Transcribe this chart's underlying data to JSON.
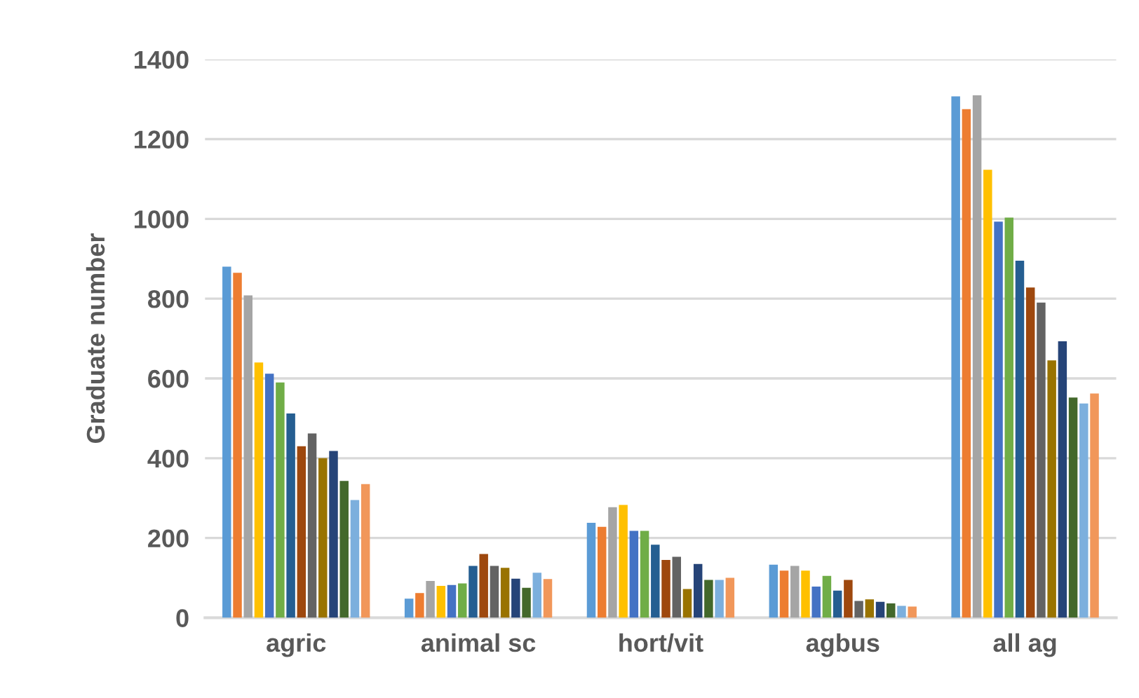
{
  "chart_data": {
    "type": "bar",
    "ylabel": "Graduate number",
    "categories": [
      "agric",
      "animal sc",
      "hort/vit",
      "agbus",
      "all ag"
    ],
    "series": [
      {
        "color": "#5b9bd5",
        "values": [
          880,
          48,
          238,
          133,
          1307
        ]
      },
      {
        "color": "#ed7d31",
        "values": [
          865,
          62,
          228,
          118,
          1275
        ]
      },
      {
        "color": "#a5a5a5",
        "values": [
          808,
          92,
          277,
          130,
          1310
        ]
      },
      {
        "color": "#ffc000",
        "values": [
          640,
          80,
          283,
          118,
          1123
        ]
      },
      {
        "color": "#4472c4",
        "values": [
          612,
          82,
          218,
          78,
          993
        ]
      },
      {
        "color": "#70ad47",
        "values": [
          590,
          86,
          218,
          105,
          1003
        ]
      },
      {
        "color": "#255e91",
        "values": [
          512,
          130,
          183,
          68,
          895
        ]
      },
      {
        "color": "#9e480e",
        "values": [
          430,
          160,
          145,
          95,
          828
        ]
      },
      {
        "color": "#636363",
        "values": [
          462,
          130,
          153,
          42,
          790
        ]
      },
      {
        "color": "#997300",
        "values": [
          400,
          125,
          72,
          46,
          645
        ]
      },
      {
        "color": "#264478",
        "values": [
          418,
          98,
          135,
          40,
          693
        ]
      },
      {
        "color": "#43682b",
        "values": [
          343,
          75,
          95,
          36,
          552
        ]
      },
      {
        "color": "#7cafdd",
        "values": [
          295,
          113,
          95,
          30,
          537
        ]
      },
      {
        "color": "#f1975a",
        "values": [
          335,
          97,
          100,
          28,
          562
        ]
      }
    ],
    "ylim": [
      0,
      1400
    ],
    "yticks": [
      0,
      200,
      400,
      600,
      800,
      1000,
      1200,
      1400
    ],
    "grid": "y"
  }
}
